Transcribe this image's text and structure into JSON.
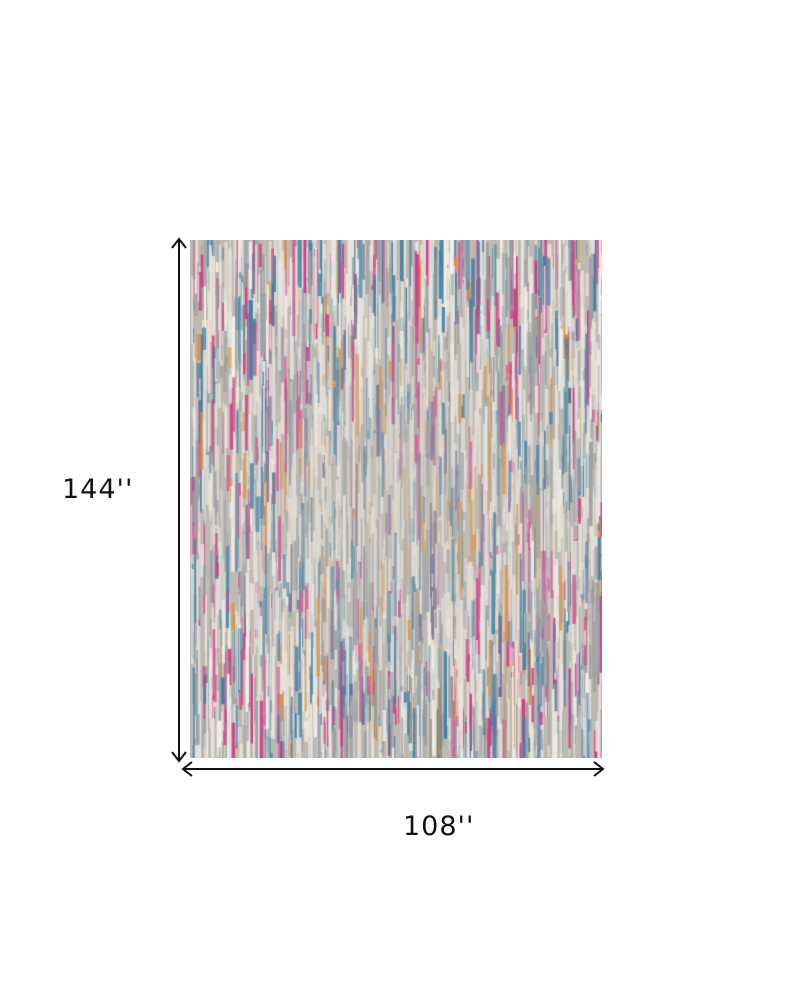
{
  "product": {
    "height_label": "144''",
    "width_label": "108''",
    "palette": [
      "#c9c5bd",
      "#e8e4dc",
      "#9aa0a4",
      "#d23a86",
      "#3f7fa6",
      "#d9903c",
      "#6b5f8a",
      "#f3efe8"
    ]
  }
}
